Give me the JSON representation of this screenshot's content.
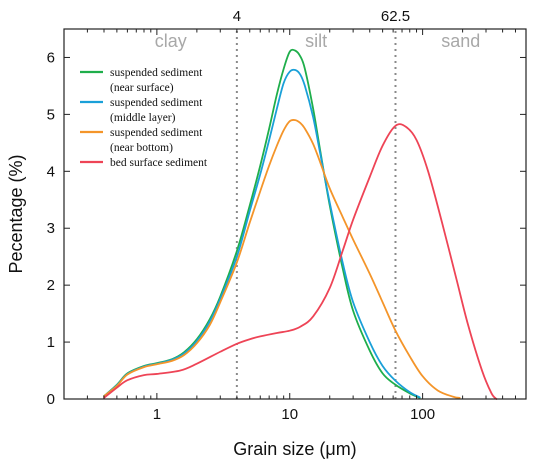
{
  "chart_data": {
    "type": "line",
    "xlabel": "Grain size (μm)",
    "ylabel": "Pecentage (%)",
    "x_scale": "log",
    "xlim": [
      0.2,
      600
    ],
    "ylim": [
      0,
      6.5
    ],
    "x_ticks": [
      {
        "value": 1,
        "label": "1"
      },
      {
        "value": 10,
        "label": "10"
      },
      {
        "value": 100,
        "label": "100"
      }
    ],
    "y_ticks": [
      0,
      1,
      2,
      3,
      4,
      5,
      6
    ],
    "grid": false,
    "legend_position": "top-left",
    "boundaries": [
      {
        "value": 4,
        "label": "4"
      },
      {
        "value": 62.5,
        "label": "62.5"
      }
    ],
    "regions": [
      "clay",
      "silt",
      "sand"
    ],
    "series": [
      {
        "legend_lines": [
          "suspended sediment",
          "(near surface)"
        ],
        "color": "#1fae4b",
        "x": [
          0.4,
          0.5,
          0.6,
          0.8,
          1,
          1.3,
          1.6,
          2,
          2.5,
          3,
          4,
          5,
          6,
          7,
          8,
          9,
          10,
          11,
          12,
          13,
          15,
          17,
          20,
          25,
          30,
          40,
          50,
          62.5,
          80,
          95
        ],
        "y": [
          0.05,
          0.25,
          0.45,
          0.58,
          0.63,
          0.7,
          0.82,
          1.05,
          1.4,
          1.8,
          2.6,
          3.4,
          4.1,
          4.75,
          5.35,
          5.8,
          6.1,
          6.12,
          6.02,
          5.8,
          5.1,
          4.35,
          3.4,
          2.3,
          1.55,
          0.85,
          0.45,
          0.25,
          0.1,
          0.02
        ]
      },
      {
        "legend_lines": [
          "suspended sediment",
          "(middle layer)"
        ],
        "color": "#1aa0d8",
        "x": [
          0.4,
          0.5,
          0.6,
          0.8,
          1,
          1.3,
          1.6,
          2,
          2.5,
          3,
          4,
          5,
          6,
          7,
          8,
          9,
          10,
          11,
          12,
          13,
          15,
          17,
          20,
          25,
          30,
          40,
          50,
          62.5,
          80,
          95
        ],
        "y": [
          0.05,
          0.24,
          0.44,
          0.57,
          0.62,
          0.69,
          0.8,
          1.02,
          1.36,
          1.76,
          2.5,
          3.3,
          3.95,
          4.55,
          5.1,
          5.55,
          5.75,
          5.78,
          5.7,
          5.5,
          4.95,
          4.3,
          3.45,
          2.4,
          1.7,
          1.0,
          0.58,
          0.32,
          0.12,
          0.03
        ]
      },
      {
        "legend_lines": [
          "suspended sediment",
          "(near bottom)"
        ],
        "color": "#f4952a",
        "x": [
          0.4,
          0.5,
          0.6,
          0.8,
          1,
          1.3,
          1.6,
          2,
          2.5,
          3,
          4,
          5,
          6,
          7,
          8,
          9,
          10,
          11,
          12,
          13,
          15,
          17,
          20,
          25,
          30,
          40,
          50,
          62.5,
          80,
          100,
          130,
          170,
          190
        ],
        "y": [
          0.05,
          0.23,
          0.43,
          0.56,
          0.61,
          0.67,
          0.77,
          0.98,
          1.3,
          1.7,
          2.4,
          3.1,
          3.65,
          4.1,
          4.45,
          4.72,
          4.88,
          4.9,
          4.85,
          4.75,
          4.48,
          4.15,
          3.7,
          3.2,
          2.8,
          2.2,
          1.7,
          1.2,
          0.75,
          0.4,
          0.15,
          0.04,
          0.02
        ]
      },
      {
        "legend_lines": [
          "bed surface sediment"
        ],
        "color": "#ee4456",
        "x": [
          0.4,
          0.5,
          0.6,
          0.8,
          1,
          1.5,
          2,
          3,
          4,
          5,
          6,
          8,
          10,
          12,
          15,
          20,
          25,
          30,
          40,
          50,
          62.5,
          75,
          90,
          110,
          140,
          180,
          220,
          280,
          330,
          360
        ],
        "y": [
          0.02,
          0.2,
          0.33,
          0.42,
          0.44,
          0.5,
          0.62,
          0.83,
          0.97,
          1.05,
          1.1,
          1.16,
          1.2,
          1.27,
          1.45,
          1.95,
          2.6,
          3.15,
          3.9,
          4.45,
          4.8,
          4.78,
          4.55,
          4.0,
          3.1,
          2.1,
          1.3,
          0.5,
          0.1,
          0.0
        ]
      }
    ]
  }
}
